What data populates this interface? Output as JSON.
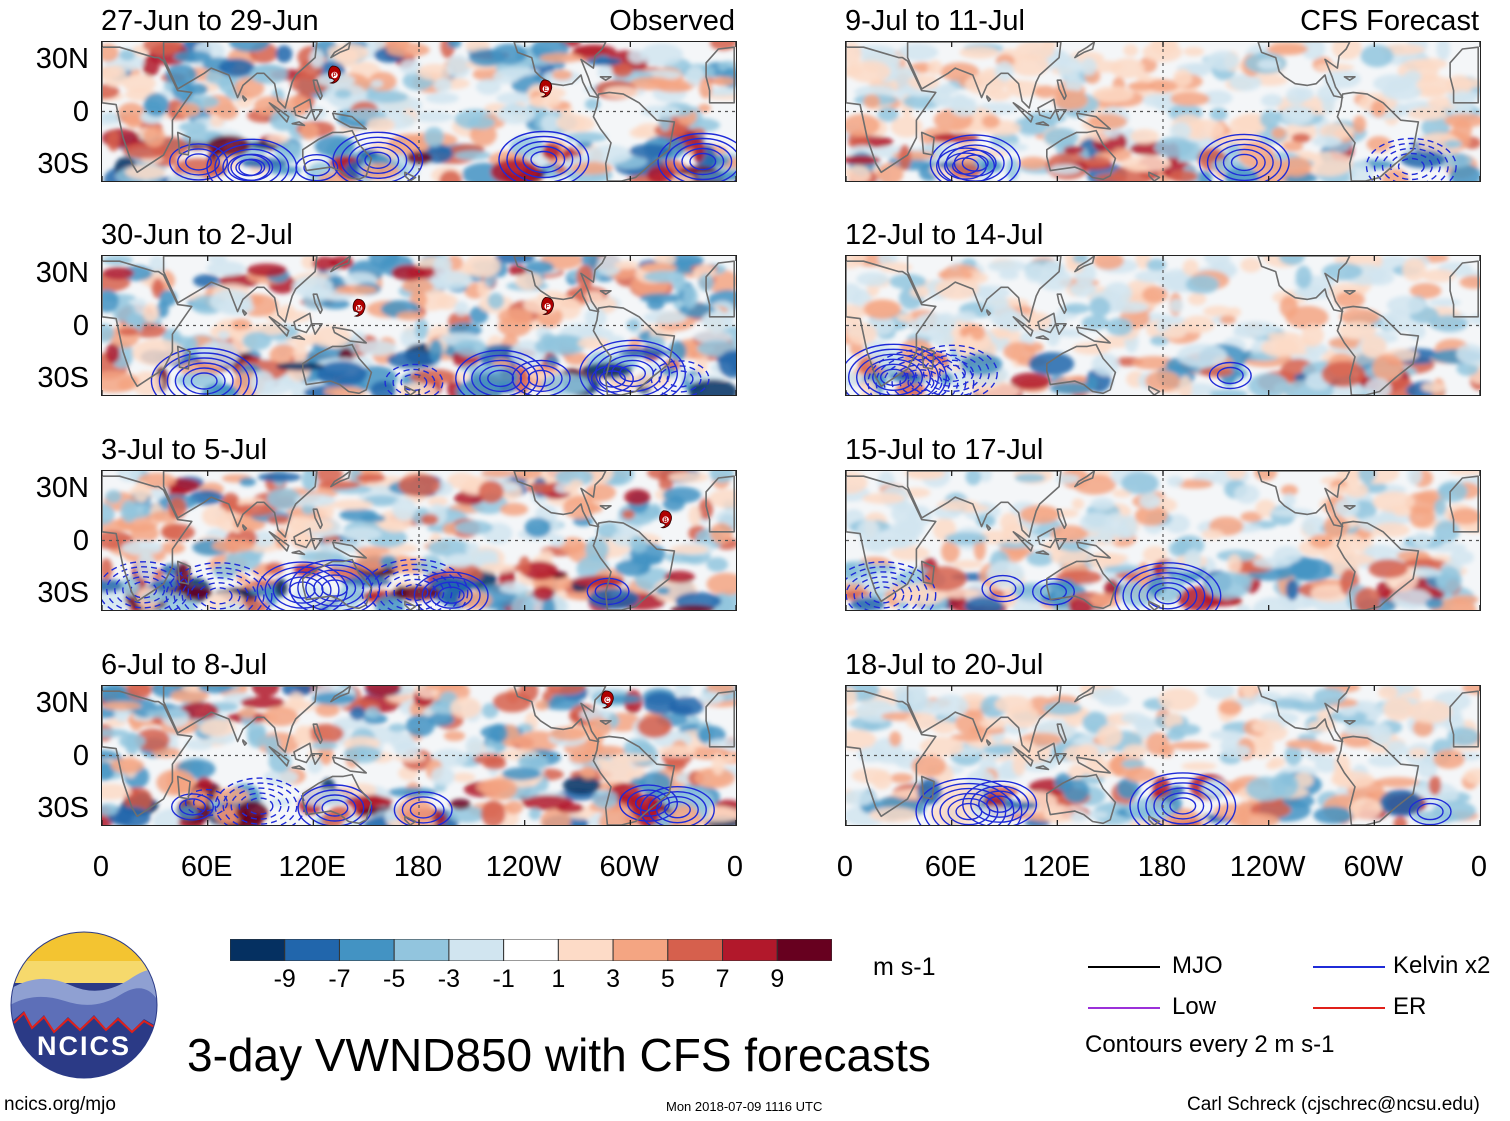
{
  "chart_data": {
    "type": "heatmap",
    "title": "3-day VWND850 with CFS forecasts",
    "variable": "850-hPa meridional wind anomaly",
    "units": "m s-1",
    "x_axis": {
      "labels": [
        "0",
        "60E",
        "120E",
        "180",
        "120W",
        "60W",
        "0"
      ],
      "range_deg_east": [
        0,
        360
      ]
    },
    "y_axis": {
      "labels": [
        "30N",
        "0",
        "30S"
      ],
      "range_deg": [
        -40,
        40
      ]
    },
    "panels_observed_tag": "Observed",
    "panels_forecast_tag": "CFS Forecast",
    "panels": [
      {
        "period": "27-Jun to 29-Jun",
        "kind": "observed",
        "storms": [
          {
            "lon": 132,
            "lat": 21,
            "letter": "P"
          },
          {
            "lon": 252,
            "lat": 13,
            "letter": "E"
          }
        ]
      },
      {
        "period": "30-Jun to 2-Jul",
        "kind": "observed",
        "storms": [
          {
            "lon": 146,
            "lat": 10,
            "letter": "M"
          },
          {
            "lon": 253,
            "lat": 11,
            "letter": "F"
          }
        ]
      },
      {
        "period": "3-Jul to 5-Jul",
        "kind": "observed",
        "storms": [
          {
            "lon": 320,
            "lat": 12,
            "letter": "B"
          }
        ]
      },
      {
        "period": "6-Jul to 8-Jul",
        "kind": "observed",
        "storms": [
          {
            "lon": 287,
            "lat": 32,
            "letter": "C"
          }
        ]
      },
      {
        "period": "9-Jul to 11-Jul",
        "kind": "forecast",
        "storms": []
      },
      {
        "period": "12-Jul to 14-Jul",
        "kind": "forecast",
        "storms": []
      },
      {
        "period": "15-Jul to 17-Jul",
        "kind": "forecast",
        "storms": []
      },
      {
        "period": "18-Jul to 20-Jul",
        "kind": "forecast",
        "storms": []
      }
    ],
    "colorbar": {
      "tick_labels": [
        "-9",
        "-7",
        "-5",
        "-3",
        "-1",
        "1",
        "3",
        "5",
        "7",
        "9"
      ],
      "colors": [
        "#053061",
        "#2166ac",
        "#4393c3",
        "#92c5de",
        "#d1e5f0",
        "#ffffff",
        "#fddbc7",
        "#f4a582",
        "#d6604d",
        "#b2182b",
        "#67001f"
      ]
    },
    "legend": {
      "entries": [
        {
          "label": "MJO",
          "color": "#000000"
        },
        {
          "label": "Kelvin x2",
          "color": "#1f2bd8"
        },
        {
          "label": "Low",
          "color": "#9b30d9"
        },
        {
          "label": "ER",
          "color": "#e0201a"
        }
      ],
      "note": "Contours every 2 m s-1"
    }
  },
  "branding": {
    "logo_text": "NCICS",
    "url": "ncics.org/mjo",
    "timestamp": "Mon 2018-07-09 1116 UTC",
    "credit": "Carl Schreck (cjschrec@ncsu.edu)"
  }
}
